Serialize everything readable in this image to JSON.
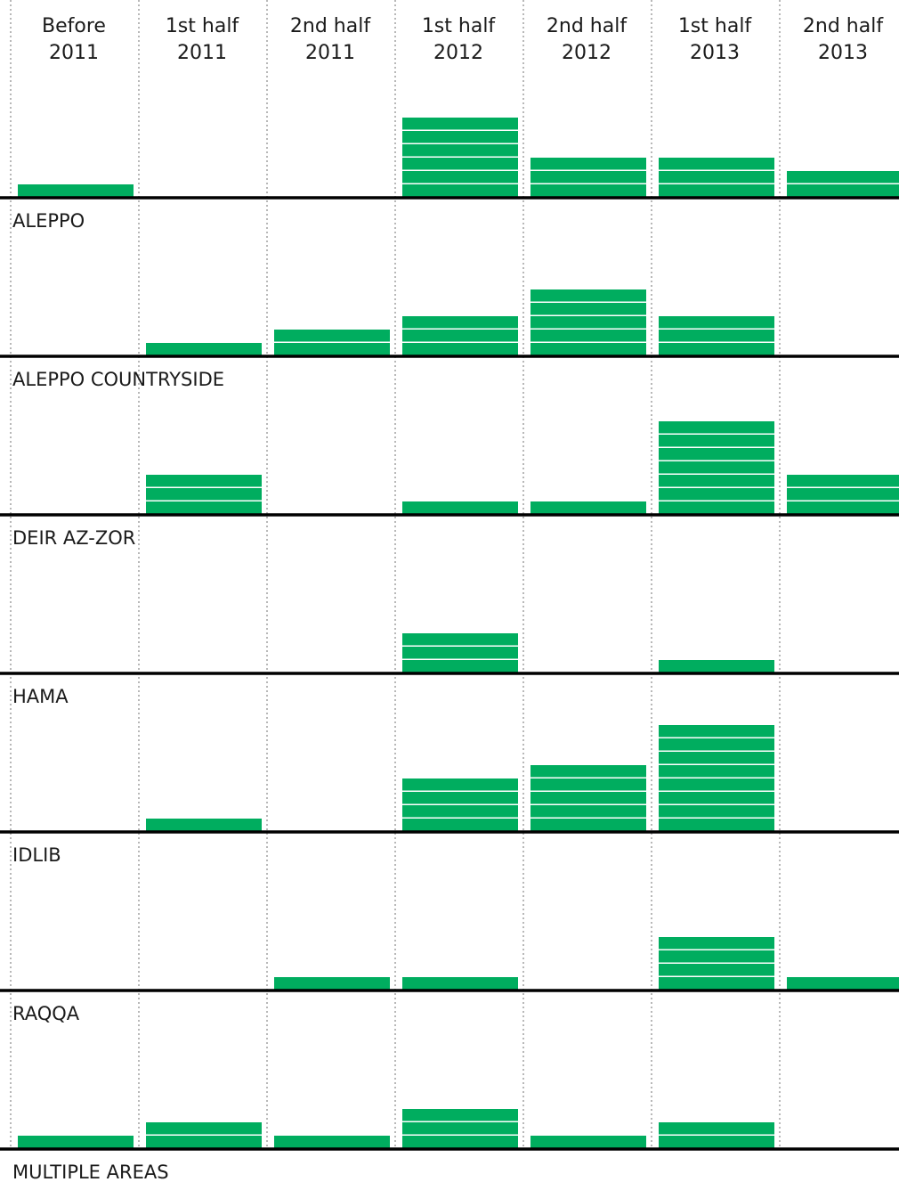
{
  "chart_data": {
    "type": "bar",
    "style": "stacked-unit-bars",
    "colors": {
      "bar": "#00ad5f",
      "baseline": "#000000",
      "divider": "#999999"
    },
    "categories": [
      [
        "Before",
        "2011"
      ],
      [
        "1st half",
        "2011"
      ],
      [
        "2nd half",
        "2011"
      ],
      [
        "1st half",
        "2012"
      ],
      [
        "2nd half",
        "2012"
      ],
      [
        "1st half",
        "2013"
      ],
      [
        "2nd half",
        "2013"
      ]
    ],
    "series": [
      {
        "name": "ALEPPO",
        "values": [
          1,
          0,
          0,
          6,
          3,
          3,
          2
        ]
      },
      {
        "name": "ALEPPO COUNTRYSIDE",
        "values": [
          0,
          1,
          2,
          3,
          5,
          3,
          0
        ]
      },
      {
        "name": "DEIR AZ-ZOR",
        "values": [
          0,
          3,
          0,
          1,
          1,
          7,
          3
        ]
      },
      {
        "name": "HAMA",
        "values": [
          0,
          0,
          0,
          3,
          0,
          1,
          0
        ]
      },
      {
        "name": "IDLIB",
        "values": [
          0,
          1,
          0,
          4,
          5,
          8,
          0
        ]
      },
      {
        "name": "RAQQA",
        "values": [
          0,
          0,
          1,
          1,
          0,
          4,
          1
        ]
      },
      {
        "name": "MULTIPLE AREAS",
        "values": [
          1,
          2,
          1,
          3,
          1,
          2,
          0
        ]
      }
    ]
  }
}
